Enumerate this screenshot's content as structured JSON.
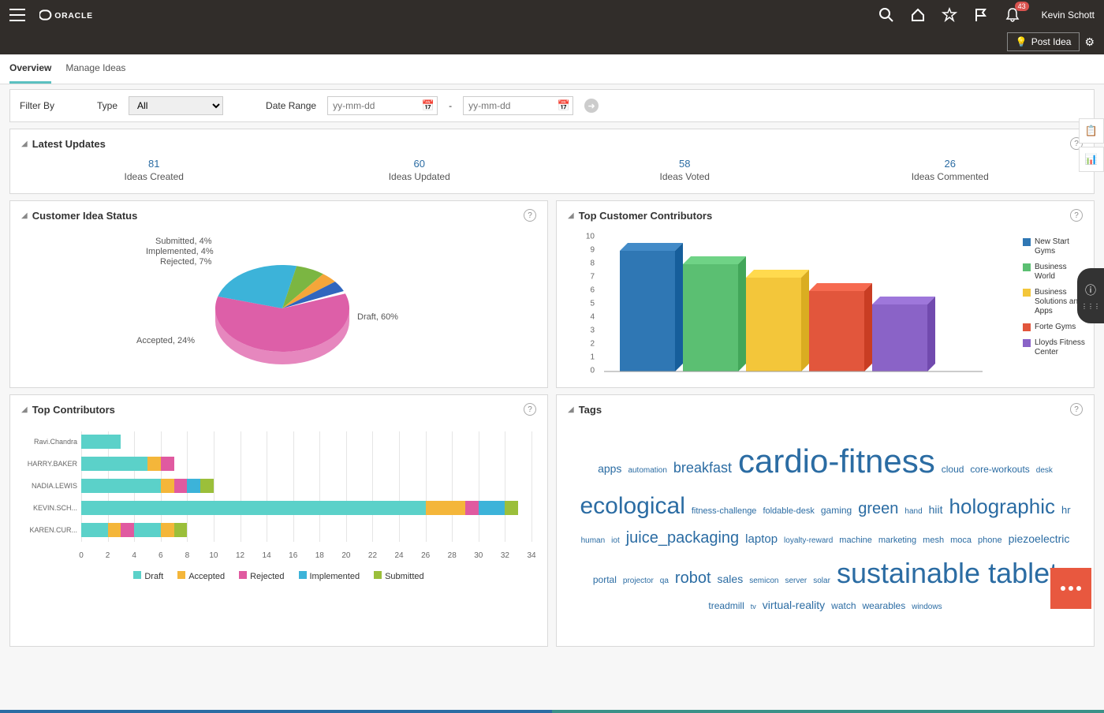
{
  "header": {
    "brand": "ORACLE",
    "username": "Kevin Schott",
    "notif_count": "43",
    "post_idea_label": "Post Idea"
  },
  "tabs": [
    {
      "label": "Overview",
      "active": true
    },
    {
      "label": "Manage Ideas",
      "active": false
    }
  ],
  "filter": {
    "filter_by_label": "Filter By",
    "type_label": "Type",
    "type_value": "All",
    "date_range_label": "Date Range",
    "date_placeholder": "yy-mm-dd",
    "dash": "-"
  },
  "latest_updates": {
    "title": "Latest Updates",
    "stats": [
      {
        "num": "81",
        "lbl": "Ideas Created"
      },
      {
        "num": "60",
        "lbl": "Ideas Updated"
      },
      {
        "num": "58",
        "lbl": "Ideas Voted"
      },
      {
        "num": "26",
        "lbl": "Ideas Commented"
      }
    ]
  },
  "pie_chart": {
    "title": "Customer Idea Status",
    "slices": [
      {
        "label": "Draft, 60%",
        "value": 60,
        "color": "#dd5fa8"
      },
      {
        "label": "Accepted, 24%",
        "value": 24,
        "color": "#3cb3d9"
      },
      {
        "label": "Rejected, 7%",
        "value": 7,
        "color": "#7bb642"
      },
      {
        "label": "Implemented, 4%",
        "value": 4,
        "color": "#f4a63a"
      },
      {
        "label": "Submitted, 4%",
        "value": 4,
        "color": "#3066be"
      }
    ]
  },
  "cust_bar": {
    "title": "Top Customer Contributors",
    "ymax": 10,
    "bars": [
      {
        "name": "New Start Gyms",
        "value": 9,
        "color": "#2f77b4"
      },
      {
        "name": "Business World",
        "value": 8,
        "color": "#5bbf72"
      },
      {
        "name": "Business Solutions and Apps",
        "value": 7,
        "color": "#f3c63a"
      },
      {
        "name": "Forte Gyms",
        "value": 6,
        "color": "#e2563c"
      },
      {
        "name": "Lloyds Fitness Center",
        "value": 5,
        "color": "#8a63c7"
      }
    ]
  },
  "top_contrib": {
    "title": "Top Contributors",
    "xmax": 34,
    "categories": [
      "Draft",
      "Accepted",
      "Rejected",
      "Implemented",
      "Submitted"
    ],
    "colors": {
      "Draft": "#5bd1c9",
      "Accepted": "#f4b63a",
      "Rejected": "#e05aa0",
      "Implemented": "#3cb3d9",
      "Submitted": "#9bbf3a"
    },
    "rows": [
      {
        "name": "Ravi.Chandra",
        "segs": [
          {
            "k": "Draft",
            "v": 3
          }
        ]
      },
      {
        "name": "HARRY.BAKER",
        "segs": [
          {
            "k": "Draft",
            "v": 5
          },
          {
            "k": "Accepted",
            "v": 1
          },
          {
            "k": "Rejected",
            "v": 1
          }
        ]
      },
      {
        "name": "NADIA.LEWIS",
        "segs": [
          {
            "k": "Draft",
            "v": 6
          },
          {
            "k": "Accepted",
            "v": 1
          },
          {
            "k": "Rejected",
            "v": 1
          },
          {
            "k": "Implemented",
            "v": 1
          },
          {
            "k": "Submitted",
            "v": 1
          }
        ]
      },
      {
        "name": "KEVIN.SCH...",
        "segs": [
          {
            "k": "Draft",
            "v": 26
          },
          {
            "k": "Accepted",
            "v": 3
          },
          {
            "k": "Rejected",
            "v": 1
          },
          {
            "k": "Implemented",
            "v": 2
          },
          {
            "k": "Submitted",
            "v": 1
          }
        ]
      },
      {
        "name": "KAREN.CUR...",
        "segs": [
          {
            "k": "Draft",
            "v": 2
          },
          {
            "k": "Accepted",
            "v": 1
          },
          {
            "k": "Rejected",
            "v": 1
          },
          {
            "k": "Draft",
            "v": 2
          },
          {
            "k": "Accepted",
            "v": 1
          },
          {
            "k": "Submitted",
            "v": 1
          }
        ]
      }
    ]
  },
  "tags": {
    "title": "Tags",
    "items": [
      {
        "t": "apps",
        "s": 14
      },
      {
        "t": "automation",
        "s": 10
      },
      {
        "t": "breakfast",
        "s": 18
      },
      {
        "t": "cardio-fitness",
        "s": 42
      },
      {
        "t": "cloud",
        "s": 12
      },
      {
        "t": "core-workouts",
        "s": 12
      },
      {
        "t": "desk",
        "s": 10
      },
      {
        "t": "ecological",
        "s": 30
      },
      {
        "t": "fitness-challenge",
        "s": 11
      },
      {
        "t": "foldable-desk",
        "s": 11
      },
      {
        "t": "gaming",
        "s": 12
      },
      {
        "t": "green",
        "s": 20
      },
      {
        "t": "hand",
        "s": 10
      },
      {
        "t": "hiit",
        "s": 14
      },
      {
        "t": "holographic",
        "s": 26
      },
      {
        "t": "hr",
        "s": 13
      },
      {
        "t": "human",
        "s": 10
      },
      {
        "t": "iot",
        "s": 10
      },
      {
        "t": "juice_packaging",
        "s": 20
      },
      {
        "t": "laptop",
        "s": 15
      },
      {
        "t": "loyalty-reward",
        "s": 10
      },
      {
        "t": "machine",
        "s": 11
      },
      {
        "t": "marketing",
        "s": 11
      },
      {
        "t": "mesh",
        "s": 11
      },
      {
        "t": "moca",
        "s": 11
      },
      {
        "t": "phone",
        "s": 11
      },
      {
        "t": "piezoelectric",
        "s": 14
      },
      {
        "t": "portal",
        "s": 12
      },
      {
        "t": "projector",
        "s": 10
      },
      {
        "t": "qa",
        "s": 10
      },
      {
        "t": "robot",
        "s": 20
      },
      {
        "t": "sales",
        "s": 14
      },
      {
        "t": "semicon",
        "s": 10
      },
      {
        "t": "server",
        "s": 10
      },
      {
        "t": "solar",
        "s": 10
      },
      {
        "t": "sustainable tablet",
        "s": 36
      },
      {
        "t": "treadmill",
        "s": 12
      },
      {
        "t": "tv",
        "s": 9
      },
      {
        "t": "virtual-reality",
        "s": 14
      },
      {
        "t": "watch",
        "s": 12
      },
      {
        "t": "wearables",
        "s": 12
      },
      {
        "t": "windows",
        "s": 10
      }
    ]
  }
}
